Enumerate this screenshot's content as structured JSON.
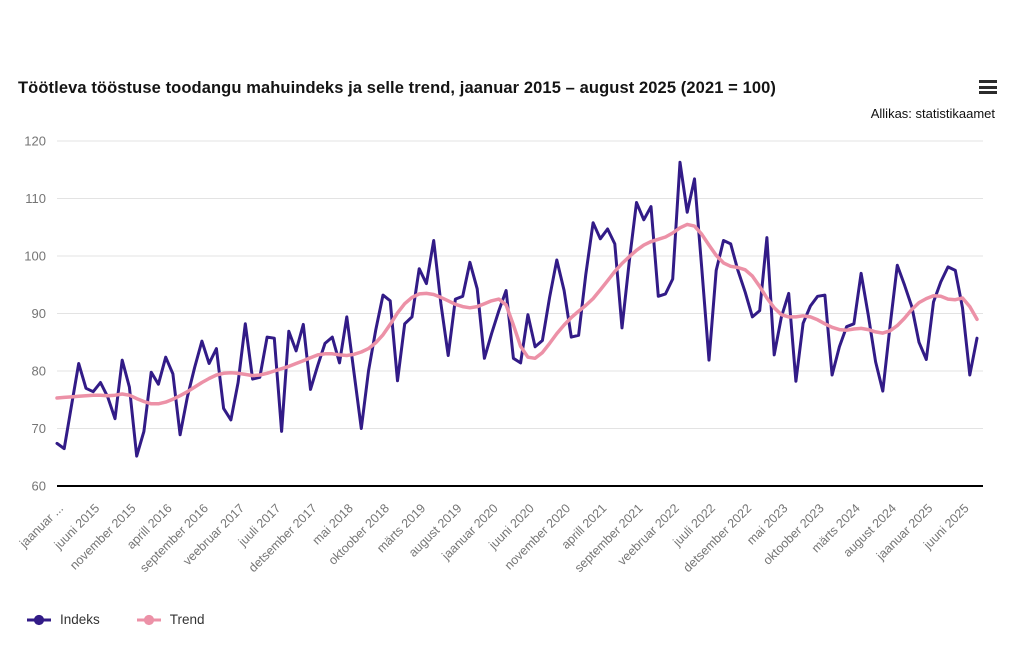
{
  "header": {
    "title": "Töötleva tööstuse toodangu mahuindeks ja selle trend, jaanuar 2015 – august 2025 (2021 = 100)",
    "source": "Allikas: statistikaamet",
    "menu_icon": "hamburger-menu-icon"
  },
  "colors": {
    "indeks": "#321b87",
    "trend": "#ec91a7",
    "grid": "#e3e3e3",
    "baseline": "#000000",
    "tick_text": "#757575"
  },
  "legend": {
    "items": [
      {
        "label": "Indeks",
        "color": "#321b87"
      },
      {
        "label": "Trend",
        "color": "#ec91a7"
      }
    ]
  },
  "chart_data": {
    "type": "line",
    "title": "Töötleva tööstuse toodangu mahuindeks ja selle trend, jaanuar 2015 – august 2025 (2021 = 100)",
    "x_start": "jaanuar 2015",
    "x_end": "august 2025",
    "months_total": 128,
    "x_tick_every": 5,
    "x_tick_labels": [
      "jaanuar ...",
      "juuni 2015",
      "november 2015",
      "aprill 2016",
      "september 2016",
      "veebruar 2017",
      "juuli 2017",
      "detsember 2017",
      "mai 2018",
      "oktoober 2018",
      "märts 2019",
      "august 2019",
      "jaanuar 2020",
      "juuni 2020",
      "november 2020",
      "aprill 2021",
      "september 2021",
      "veebruar 2022",
      "juuli 2022",
      "detsember 2022",
      "mai 2023",
      "oktoober 2023",
      "märts 2024",
      "august 2024",
      "jaanuar 2025",
      "juuni 2025"
    ],
    "y_ticks": [
      120,
      110,
      100,
      90,
      80,
      70,
      60
    ],
    "ylim": [
      60,
      120
    ],
    "grid": "horizontal-only",
    "legend_position": "bottom-left",
    "series": [
      {
        "name": "Indeks",
        "color": "#321b87",
        "width": 3,
        "values": [
          67.4,
          66.5,
          74.0,
          81.3,
          77.0,
          76.4,
          78.0,
          75.5,
          71.7,
          81.9,
          77.2,
          65.2,
          69.5,
          79.8,
          77.7,
          82.4,
          79.5,
          68.9,
          75.5,
          80.6,
          85.2,
          81.3,
          83.9,
          73.5,
          71.5,
          78.0,
          88.2,
          78.6,
          78.9,
          85.9,
          85.7,
          69.5,
          86.9,
          83.5,
          88.1,
          76.8,
          81.0,
          84.8,
          85.9,
          81.4,
          89.4,
          79.7,
          70.0,
          80.0,
          87.1,
          93.2,
          92.2,
          78.3,
          88.2,
          89.4,
          97.8,
          95.2,
          102.7,
          91.7,
          82.7,
          92.5,
          93.0,
          98.9,
          94.3,
          82.2,
          86.5,
          90.5,
          94.0,
          82.2,
          81.4,
          89.8,
          84.2,
          85.3,
          92.8,
          99.3,
          94.0,
          85.9,
          86.2,
          96.8,
          105.8,
          103.0,
          104.7,
          102.1,
          87.5,
          99.1,
          109.3,
          106.3,
          108.6,
          93.0,
          93.4,
          96.0,
          116.3,
          107.6,
          113.4,
          98.0,
          81.9,
          97.5,
          102.7,
          102.1,
          97.5,
          93.7,
          89.4,
          90.5,
          103.2,
          82.8,
          89.4,
          93.5,
          78.2,
          88.3,
          91.3,
          93.0,
          93.2,
          79.3,
          84.2,
          87.7,
          88.2,
          97.0,
          89.7,
          81.6,
          76.5,
          87.9,
          98.4,
          94.9,
          91.2,
          85.0,
          82.0,
          92.0,
          95.5,
          98.1,
          97.5,
          91.0,
          79.3,
          85.7
        ]
      },
      {
        "name": "Trend",
        "color": "#ec91a7",
        "width": 3.5,
        "values": [
          75.3,
          75.4,
          75.5,
          75.6,
          75.7,
          75.8,
          75.8,
          75.7,
          75.8,
          76.0,
          75.8,
          75.2,
          74.7,
          74.3,
          74.3,
          74.6,
          75.1,
          75.7,
          76.4,
          77.2,
          78.0,
          78.7,
          79.3,
          79.6,
          79.7,
          79.6,
          79.4,
          79.2,
          79.3,
          79.6,
          80.0,
          80.4,
          80.8,
          81.3,
          81.8,
          82.3,
          82.8,
          83.0,
          83.0,
          82.8,
          82.7,
          82.9,
          83.3,
          83.9,
          84.9,
          86.3,
          88.1,
          90.1,
          91.7,
          92.8,
          93.4,
          93.5,
          93.3,
          92.8,
          92.2,
          91.6,
          91.2,
          91.0,
          91.2,
          91.7,
          92.2,
          92.5,
          91.5,
          88.0,
          84.3,
          82.4,
          82.2,
          83.2,
          84.8,
          86.5,
          88.0,
          89.3,
          90.4,
          91.4,
          92.6,
          94.1,
          95.7,
          97.3,
          98.7,
          99.9,
          101.0,
          101.9,
          102.5,
          102.9,
          103.3,
          104.0,
          104.9,
          105.5,
          105.2,
          103.8,
          101.9,
          100.1,
          98.8,
          98.2,
          98.0,
          97.6,
          96.5,
          94.7,
          92.7,
          91.0,
          89.8,
          89.4,
          89.4,
          89.6,
          89.4,
          88.9,
          88.2,
          87.6,
          87.2,
          87.1,
          87.3,
          87.4,
          87.2,
          86.8,
          86.6,
          87.0,
          87.9,
          89.2,
          90.7,
          91.9,
          92.6,
          93.1,
          93.0,
          92.5,
          92.4,
          92.7,
          91.2,
          89.0
        ]
      }
    ]
  }
}
